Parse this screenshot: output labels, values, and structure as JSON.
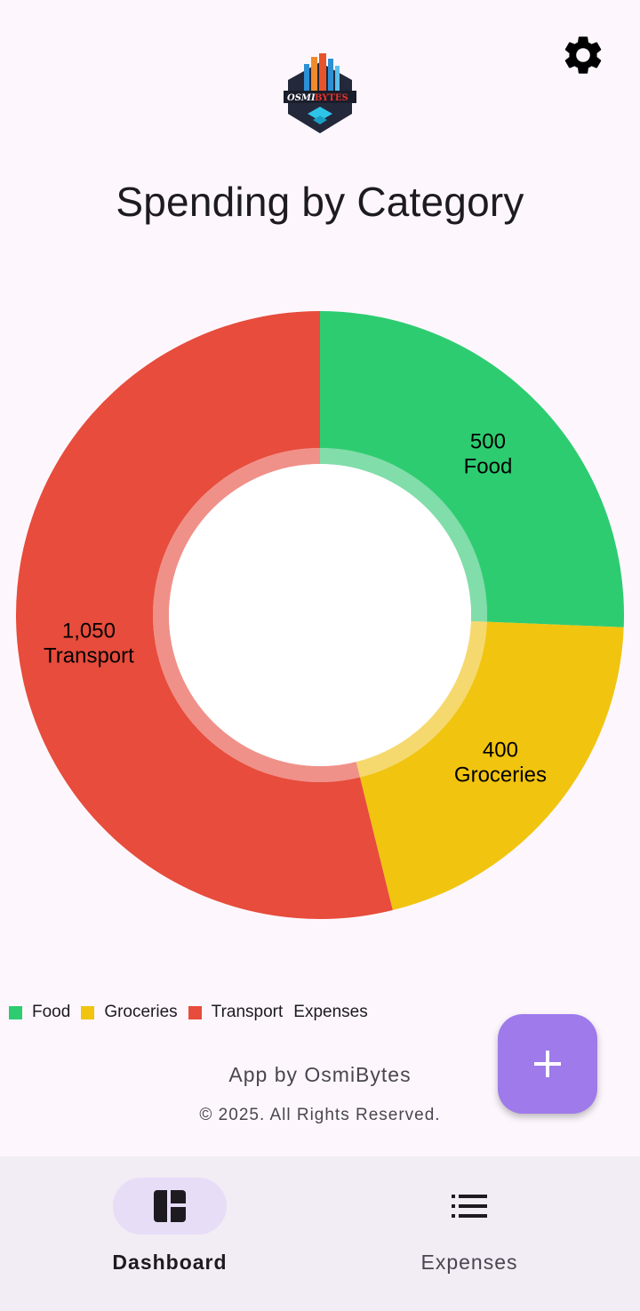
{
  "header": {
    "settings_icon": "gear-icon",
    "logo_text": "OSMI BYTES"
  },
  "title": "Spending by Category",
  "chart_data": {
    "type": "pie",
    "style": "donut",
    "categories": [
      "Food",
      "Groceries",
      "Transport"
    ],
    "values": [
      500,
      400,
      1050
    ],
    "value_labels": [
      "500",
      "400",
      "1,050"
    ],
    "colors": [
      "#2ecc71",
      "#f1c40f",
      "#e74c3c"
    ],
    "legend": [
      "Food",
      "Groceries",
      "Transport"
    ],
    "legend_description": "Expenses",
    "legend_position": "bottom-left"
  },
  "footer": {
    "credit": "App by OsmiBytes",
    "copyright": "© 2025. All Rights Reserved."
  },
  "fab": {
    "icon": "plus-icon",
    "label": "+"
  },
  "bottom_nav": {
    "items": [
      {
        "label": "Dashboard",
        "icon": "dashboard-icon",
        "active": true
      },
      {
        "label": "Expenses",
        "icon": "list-icon",
        "active": false
      }
    ]
  }
}
